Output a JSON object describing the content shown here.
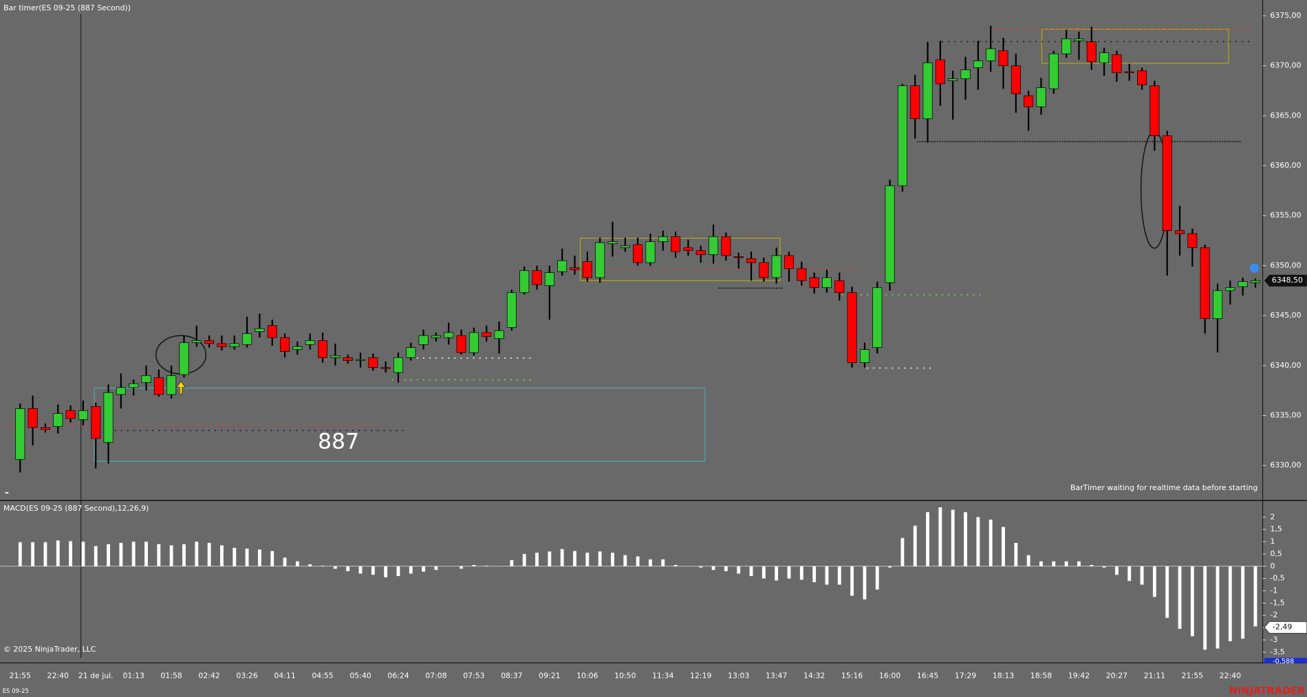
{
  "chart_data": [
    {
      "type": "candlestick",
      "title": "Bar timer(ES 09-25 (887 Second))",
      "annotation": "887",
      "status": "BarTimer waiting for realtime data before starting",
      "up_color": "#33cc33",
      "down_color": "#ff0000",
      "categories": [
        "21:55",
        null,
        null,
        "22:40",
        null,
        null,
        "21 de jul.",
        null,
        null,
        "01:13",
        null,
        null,
        "01:58",
        null,
        null,
        "02:42",
        null,
        null,
        "03:26",
        null,
        null,
        "04:11",
        null,
        null,
        "04:55",
        null,
        null,
        "05:40",
        null,
        null,
        "06:24",
        null,
        null,
        "07:08",
        null,
        null,
        "07:53",
        null,
        null,
        "08:37",
        null,
        null,
        "09:21",
        null,
        null,
        "10:06",
        null,
        null,
        "10:50",
        null,
        null,
        "11:34",
        null,
        null,
        "12:19",
        null,
        null,
        "13:03",
        null,
        null,
        "13:47",
        null,
        null,
        "14:32",
        null,
        null,
        "15:16",
        null,
        null,
        "16:00",
        null,
        null,
        "16:45",
        null,
        null,
        "17:29",
        null,
        null,
        "18:13",
        null,
        null,
        "18:58",
        null,
        null,
        "19:42",
        null,
        null,
        "20:27",
        null,
        null,
        "21:11",
        null,
        null,
        "21:55",
        null,
        null,
        "22:40",
        null,
        null
      ],
      "open": [
        6330.6,
        6335.7,
        6333.8,
        6333.9,
        6335.5,
        6334.6,
        6335.9,
        6332.3,
        6337.1,
        6337.8,
        6338.3,
        6338.8,
        6337.1,
        6339.1,
        6342.3,
        6342.5,
        6342.2,
        6341.9,
        6342.1,
        6343.4,
        6344,
        6342.8,
        6341.6,
        6342.1,
        6342.5,
        6340.8,
        6340.8,
        6340.6,
        6340.8,
        6339.8,
        6339.3,
        6340.8,
        6342.1,
        6342.8,
        6342.8,
        6343,
        6341.3,
        6343.3,
        6342.7,
        6343.8,
        6347.3,
        6349.5,
        6348,
        6349.4,
        6349.8,
        6350.4,
        6348.8,
        6352.2,
        6351.8,
        6352.1,
        6350.3,
        6352.4,
        6352.9,
        6351.8,
        6351.5,
        6351.1,
        6352.9,
        6350.9,
        6350.7,
        6350.3,
        6348.8,
        6351,
        6349.7,
        6348.8,
        6347.8,
        6348.5,
        6347.3,
        6340.3,
        6341.8,
        6348.3,
        6358,
        6368,
        6364.7,
        6370.6,
        6368.5,
        6368.7,
        6369.8,
        6370.5,
        6371.5,
        6370,
        6367,
        6365.9,
        6367.7,
        6371.2,
        6372.5,
        6372.4,
        6370.3,
        6371.1,
        6369.4,
        6369.5,
        6368,
        6363,
        6353.5,
        6353.2,
        6351.8,
        6344.7,
        6347.5,
        6347.9,
        6348.3
      ],
      "high": [
        6336.2,
        6337,
        6334.2,
        6336.1,
        6336,
        6336.5,
        6336.3,
        6338.1,
        6339.2,
        6338.6,
        6340,
        6339.6,
        6340,
        6343,
        6344,
        6343,
        6343,
        6343,
        6344.9,
        6345.2,
        6344.6,
        6343.2,
        6342.4,
        6343.2,
        6343.3,
        6342.2,
        6341.1,
        6341.3,
        6341.2,
        6340.4,
        6341.3,
        6342.3,
        6343.6,
        6343.3,
        6344.3,
        6343.6,
        6343.8,
        6344,
        6344.4,
        6347.6,
        6349.9,
        6350,
        6350,
        6351.7,
        6351,
        6351.4,
        6352.8,
        6354.4,
        6352.8,
        6352.8,
        6353.2,
        6353.5,
        6353.4,
        6352.6,
        6352,
        6354.1,
        6353.3,
        6351.3,
        6351.4,
        6350.8,
        6351.8,
        6351.4,
        6350.4,
        6349.3,
        6349.6,
        6349.3,
        6347.9,
        6342.3,
        6348.4,
        6358.6,
        6368.2,
        6369.1,
        6372.4,
        6372.5,
        6369.5,
        6370.9,
        6372.5,
        6374,
        6372.8,
        6371.2,
        6367.5,
        6368.8,
        6371.5,
        6373.6,
        6373.4,
        6373.9,
        6371.8,
        6371.5,
        6370.2,
        6369.8,
        6368.5,
        6363.5,
        6356,
        6353.7,
        6352.1,
        6348.2,
        6348.5,
        6348.8,
        6348.7
      ],
      "low": [
        6329.3,
        6332,
        6333.3,
        6333.2,
        6334.3,
        6334,
        6329.7,
        6330.2,
        6335.7,
        6337,
        6337.5,
        6336.9,
        6336.7,
        6338.8,
        6341.9,
        6341.8,
        6341.5,
        6341.6,
        6341.8,
        6342.8,
        6342,
        6340.8,
        6341.1,
        6341.6,
        6340.3,
        6340,
        6340.2,
        6339.8,
        6339.5,
        6339.3,
        6338.3,
        6340.5,
        6341.6,
        6342.4,
        6342.1,
        6341.1,
        6341,
        6342.4,
        6341.2,
        6343.5,
        6347.1,
        6347.6,
        6344.6,
        6349,
        6349.1,
        6348.4,
        6348.3,
        6350.9,
        6351.4,
        6350,
        6350,
        6351.5,
        6350.8,
        6351,
        6350.3,
        6350.2,
        6350.5,
        6349.7,
        6348.5,
        6348.4,
        6348.2,
        6348.4,
        6348,
        6347.2,
        6347.3,
        6346.5,
        6339.8,
        6339.8,
        6341.2,
        6347.5,
        6357.4,
        6362.7,
        6362.3,
        6366,
        6364.6,
        6366.6,
        6367.6,
        6369.4,
        6367.7,
        6365.3,
        6363.5,
        6365.1,
        6367.2,
        6370.8,
        6370.6,
        6369.6,
        6369,
        6368.4,
        6368.5,
        6367.6,
        6361.5,
        6349,
        6351,
        6349.9,
        6343.2,
        6341.3,
        6346.1,
        6347,
        6347.8
      ],
      "close": [
        6335.7,
        6333.8,
        6333.6,
        6335.2,
        6334.7,
        6335.5,
        6332.7,
        6337.3,
        6337.8,
        6338.2,
        6339,
        6337.1,
        6339,
        6342.3,
        6342.5,
        6342.2,
        6341.9,
        6342.2,
        6343.2,
        6343.7,
        6342.8,
        6341.4,
        6341.9,
        6342.5,
        6340.8,
        6341,
        6340.5,
        6340.6,
        6339.8,
        6339.7,
        6340.8,
        6341.8,
        6343,
        6343,
        6343.3,
        6341.3,
        6343.3,
        6342.9,
        6343.5,
        6347.3,
        6349.5,
        6348.1,
        6349.3,
        6350.5,
        6349.6,
        6348.8,
        6352.3,
        6352.4,
        6352,
        6350.3,
        6352.4,
        6352.9,
        6351.4,
        6351.5,
        6351.1,
        6352.9,
        6351,
        6350.8,
        6350.3,
        6348.8,
        6351,
        6349.7,
        6348.5,
        6347.8,
        6348.8,
        6347.3,
        6340.3,
        6341.6,
        6347.8,
        6358,
        6368,
        6364.7,
        6370.3,
        6368.2,
        6368.7,
        6369.6,
        6370.5,
        6371.7,
        6370,
        6367.2,
        6365.9,
        6367.8,
        6371.2,
        6372.7,
        6372.7,
        6370.4,
        6371.3,
        6369.3,
        6369.3,
        6368.1,
        6363,
        6353.5,
        6353.2,
        6351.8,
        6344.7,
        6347.5,
        6347.8,
        6348.4,
        6348.5
      ],
      "ylim": [
        6326.75,
        6376.58
      ],
      "yticks": [
        {
          "value": 6330,
          "label": "6330,00"
        },
        {
          "value": 6335,
          "label": "6335,00"
        },
        {
          "value": 6340,
          "label": "6340,00"
        },
        {
          "value": 6345,
          "label": "6345,00"
        },
        {
          "value": 6350,
          "label": "6350,00"
        },
        {
          "value": 6355,
          "label": "6355,00"
        },
        {
          "value": 6360,
          "label": "6360,00"
        },
        {
          "value": 6365,
          "label": "6365,00"
        },
        {
          "value": 6370,
          "label": "6370,00"
        },
        {
          "value": 6375,
          "label": "6375,00"
        }
      ],
      "last_price": {
        "value": 6348.5,
        "label": "6348,50"
      }
    },
    {
      "type": "bar",
      "title": "MACD(ES 09-25 (887 Second),12,26,9)",
      "color": "#ffffff",
      "values": [
        0.98,
        0.98,
        0.98,
        1.05,
        1.02,
        1.0,
        0.82,
        0.9,
        0.95,
        1.0,
        1.0,
        0.9,
        0.85,
        0.9,
        1.0,
        0.95,
        0.85,
        0.75,
        0.72,
        0.68,
        0.62,
        0.35,
        0.2,
        0.08,
        0.02,
        -0.1,
        -0.2,
        -0.3,
        -0.35,
        -0.45,
        -0.4,
        -0.3,
        -0.22,
        -0.15,
        0,
        -0.1,
        0.05,
        0.02,
        0,
        0.25,
        0.5,
        0.55,
        0.6,
        0.7,
        0.62,
        0.55,
        0.6,
        0.55,
        0.45,
        0.4,
        0.28,
        0.28,
        0.05,
        0,
        -0.05,
        -0.15,
        -0.2,
        -0.3,
        -0.4,
        -0.5,
        -0.58,
        -0.5,
        -0.55,
        -0.65,
        -0.75,
        -0.75,
        -1.2,
        -1.35,
        -0.95,
        -0.05,
        1.15,
        1.65,
        2.2,
        2.4,
        2.3,
        2.2,
        2.0,
        1.9,
        1.6,
        0.95,
        0.45,
        0.2,
        0.2,
        0.2,
        0.2,
        0.05,
        -0.05,
        -0.35,
        -0.6,
        -0.75,
        -1.25,
        -2.1,
        -2.55,
        -2.85,
        -3.4,
        -3.35,
        -3.05,
        -2.95,
        -2.45
      ],
      "ylim": [
        -3.9,
        2.61
      ],
      "yticks": [
        2,
        {
          "value": 1.5,
          "label": "1,5"
        },
        1,
        {
          "value": 0.5,
          "label": "0,5"
        },
        0,
        {
          "value": -0.5,
          "label": "-0,5"
        },
        -1,
        {
          "value": -1.5,
          "label": "-1,5"
        },
        -2,
        {
          "value": -2.5,
          "label": "-2,5"
        },
        -3,
        {
          "value": -3.5,
          "label": "-3,5"
        }
      ],
      "last_value": {
        "value": -2.49,
        "label": "-2,49"
      },
      "signal_label": "-0,588"
    }
  ],
  "footer": {
    "copyright": "© 2025 NinjaTrader, LLC",
    "instrument": "ES 09-25",
    "brand": "NINJATRADER"
  }
}
